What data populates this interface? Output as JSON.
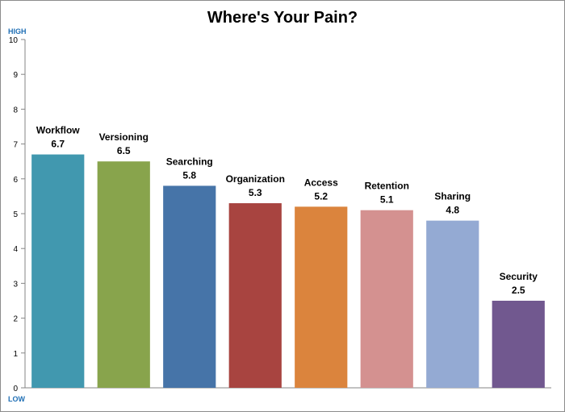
{
  "chart_data": {
    "type": "bar",
    "title": "Where's Your Pain?",
    "top_label": "HIGH",
    "bottom_label": "LOW",
    "categories": [
      "Workflow",
      "Versioning",
      "Searching",
      "Organization",
      "Access",
      "Retention",
      "Sharing",
      "Security"
    ],
    "values": [
      6.7,
      6.5,
      5.8,
      5.3,
      5.2,
      5.1,
      4.8,
      2.5
    ],
    "value_labels": [
      "6.7",
      "6.5",
      "5.8",
      "5.3",
      "5.2",
      "5.1",
      "4.8",
      "2.5"
    ],
    "colors": [
      "#4198AF",
      "#88A44C",
      "#4674A8",
      "#A84440",
      "#DB843D",
      "#D49190",
      "#94AAD3",
      "#71588F"
    ],
    "ylim": [
      0,
      10
    ],
    "yticks": [
      0,
      1,
      2,
      3,
      4,
      5,
      6,
      7,
      8,
      9,
      10
    ],
    "grid": false,
    "legend": "none",
    "axis_label_color": "#1f6fb5"
  }
}
